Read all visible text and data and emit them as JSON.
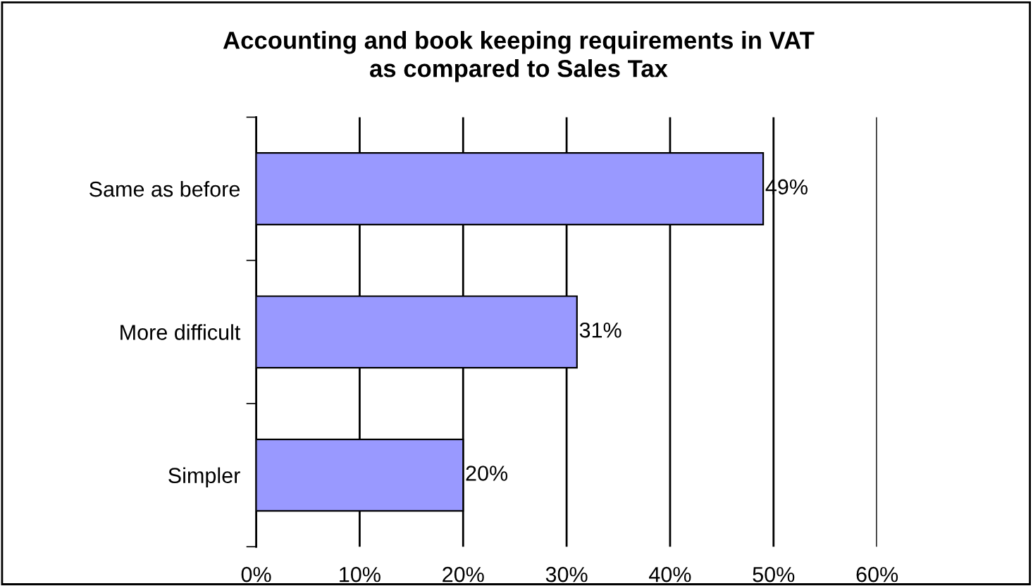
{
  "chart_data": {
    "type": "bar",
    "orientation": "horizontal",
    "title": "Accounting and book keeping requirements in VAT\nas compared to Sales Tax",
    "categories": [
      "Same as before",
      "More difficult",
      "Simpler"
    ],
    "values": [
      49,
      31,
      20
    ],
    "color": "#9999ff",
    "value_labels": [
      "49%",
      "31%",
      "20%"
    ],
    "xlim": [
      0,
      60
    ],
    "xticks": [
      {
        "value": 0,
        "label": "0%"
      },
      {
        "value": 10,
        "label": "10%"
      },
      {
        "value": 20,
        "label": "20%"
      },
      {
        "value": 30,
        "label": "30%"
      },
      {
        "value": 40,
        "label": "40%"
      },
      {
        "value": 50,
        "label": "50%"
      },
      {
        "value": 60,
        "label": "60%"
      }
    ],
    "grid": "x",
    "legend": false
  }
}
